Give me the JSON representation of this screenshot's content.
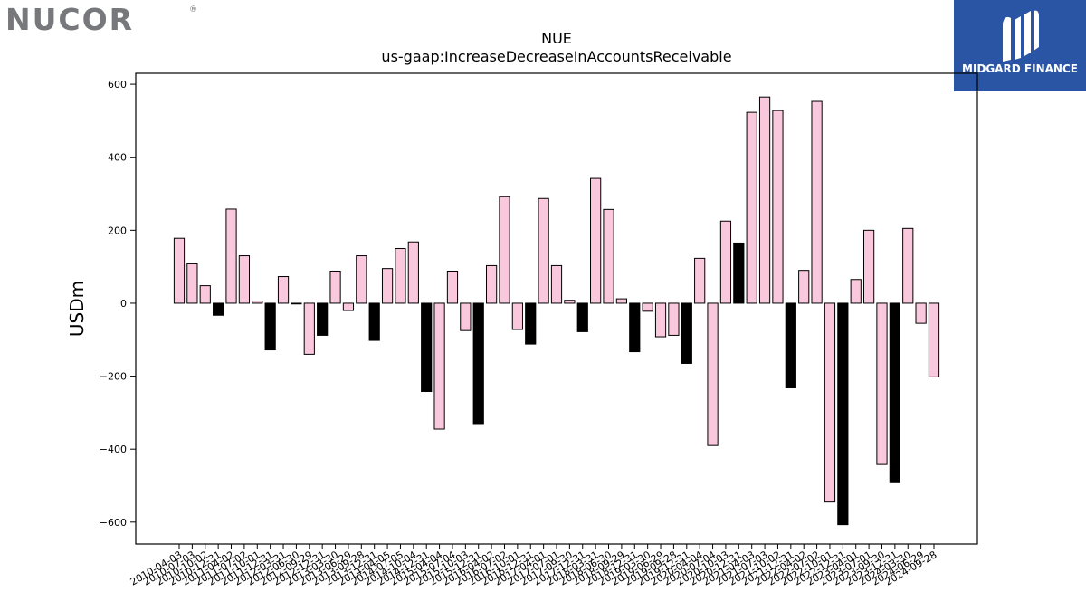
{
  "logos": {
    "left_text": "NUCOR",
    "left_mark": "®",
    "right_text": "MIDGARD FINANCE",
    "right_icon": "midgard-finance-logo",
    "right_bg": "#2a55a4"
  },
  "chart_data": {
    "type": "bar",
    "title": "NUE",
    "subtitle": "us-gaap:IncreaseDecreaseInAccountsReceivable",
    "ylabel": "USDm",
    "xlabel": "",
    "ylim": [
      -660,
      630
    ],
    "yticks": [
      -600,
      -400,
      -200,
      0,
      200,
      400,
      600
    ],
    "ytick_labels": [
      "−600",
      "−400",
      "−200",
      "0",
      "200",
      "400",
      "600"
    ],
    "colors": {
      "pink": "#f9c8dc",
      "black": "#000000",
      "edge": "#000000"
    },
    "categories": [
      "2010-04-03",
      "2010-07-03",
      "2010-10-02",
      "2010-12-31",
      "2011-04-02",
      "2011-07-02",
      "2011-10-01",
      "2011-12-31",
      "2012-03-31",
      "2012-06-30",
      "2012-09-29",
      "2012-12-31",
      "2013-03-30",
      "2013-06-29",
      "2013-09-28",
      "2013-12-31",
      "2014-04-05",
      "2014-07-05",
      "2014-10-04",
      "2014-12-31",
      "2015-04-04",
      "2015-07-04",
      "2015-10-03",
      "2015-12-31",
      "2016-04-02",
      "2016-07-02",
      "2016-10-01",
      "2016-12-31",
      "2017-04-01",
      "2017-07-01",
      "2017-09-30",
      "2017-12-31",
      "2018-03-31",
      "2018-06-30",
      "2018-09-29",
      "2018-12-31",
      "2019-03-30",
      "2019-06-29",
      "2019-09-28",
      "2019-12-31",
      "2020-04-04",
      "2020-07-04",
      "2020-10-03",
      "2020-12-31",
      "2021-04-03",
      "2021-07-03",
      "2021-10-02",
      "2021-12-31",
      "2022-04-02",
      "2022-07-02",
      "2022-10-01",
      "2022-12-31",
      "2023-04-01",
      "2023-07-01",
      "2023-09-30",
      "2023-12-31",
      "2024-03-30",
      "2024-06-29",
      "2024-09-28"
    ],
    "values": [
      178,
      108,
      48,
      -33,
      258,
      130,
      6,
      -128,
      73,
      -2,
      -140,
      -88,
      88,
      -20,
      130,
      -102,
      95,
      150,
      168,
      -242,
      -345,
      88,
      -75,
      -330,
      103,
      292,
      -72,
      -112,
      287,
      103,
      8,
      -78,
      342,
      257,
      12,
      -133,
      -22,
      -92,
      -88,
      -165,
      123,
      -390,
      225,
      165,
      523,
      565,
      528,
      -232,
      90,
      553,
      -545,
      -607,
      65,
      200,
      -442,
      -492,
      205,
      -55,
      -202
    ],
    "bar_colors": [
      "pink",
      "pink",
      "pink",
      "black",
      "pink",
      "pink",
      "pink",
      "black",
      "pink",
      "pink",
      "pink",
      "black",
      "pink",
      "pink",
      "pink",
      "black",
      "pink",
      "pink",
      "pink",
      "black",
      "pink",
      "pink",
      "pink",
      "black",
      "pink",
      "pink",
      "pink",
      "black",
      "pink",
      "pink",
      "pink",
      "black",
      "pink",
      "pink",
      "pink",
      "black",
      "pink",
      "pink",
      "pink",
      "black",
      "pink",
      "pink",
      "pink",
      "black",
      "pink",
      "pink",
      "pink",
      "black",
      "pink",
      "pink",
      "pink",
      "black",
      "pink",
      "pink",
      "pink",
      "black",
      "pink",
      "pink",
      "pink"
    ]
  }
}
